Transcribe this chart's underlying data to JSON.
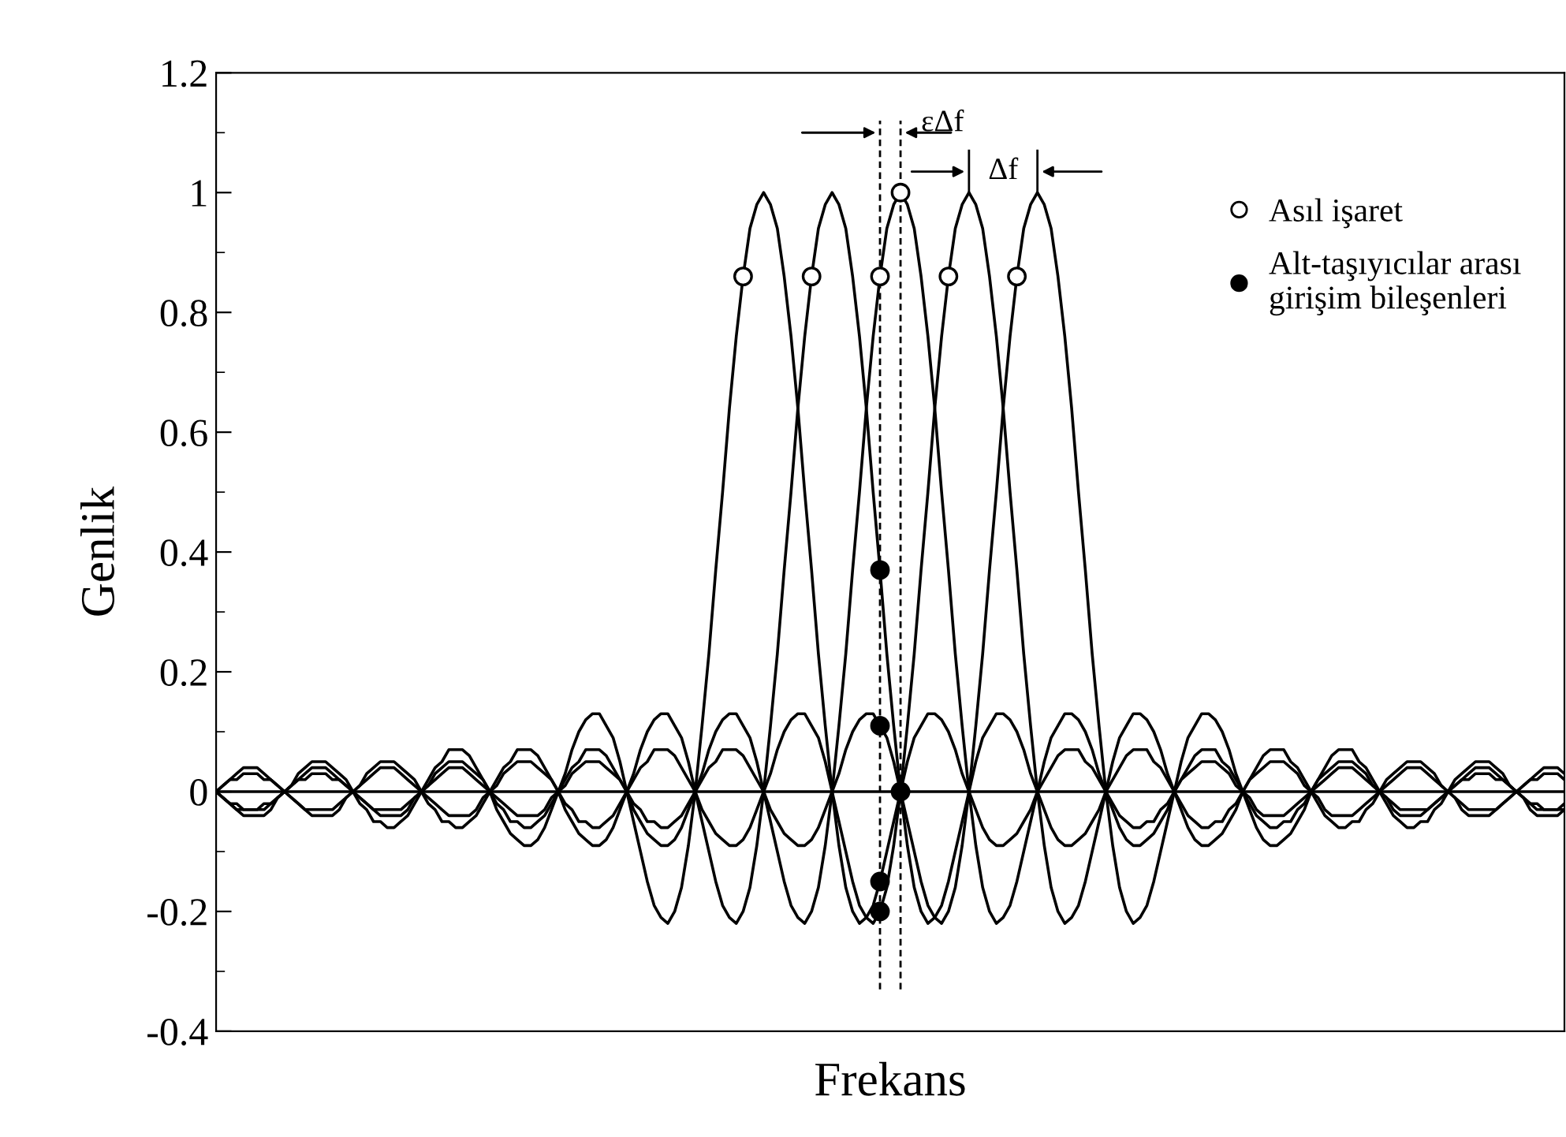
{
  "chart_data": {
    "type": "line",
    "xlabel": "Frekans",
    "ylabel": "Genlik",
    "categories": [
      null,
      null,
      null,
      null,
      null,
      null,
      null,
      null,
      null,
      null,
      null,
      null,
      null,
      null,
      null,
      null,
      null,
      null,
      null,
      null,
      null,
      null,
      null,
      null,
      null,
      null,
      null,
      null,
      null,
      null,
      null,
      null,
      null,
      null,
      null,
      null,
      null,
      null,
      null,
      null,
      null,
      null,
      null,
      null,
      null,
      null,
      null,
      null,
      null,
      null,
      null,
      null,
      null,
      null,
      null,
      null,
      null,
      null,
      null,
      null,
      null,
      null,
      null,
      null,
      null,
      null,
      null,
      null,
      null,
      null,
      null,
      null,
      null,
      null,
      null,
      null,
      null,
      null,
      null,
      null,
      null,
      null,
      null,
      null,
      null,
      null,
      null,
      null,
      null,
      null,
      null,
      null,
      null,
      null,
      null,
      null,
      null,
      null,
      null,
      null,
      null,
      null,
      null,
      null,
      null,
      null,
      null,
      null,
      null,
      null,
      null,
      null,
      null,
      null,
      null,
      null,
      null,
      null,
      null,
      null,
      null,
      null,
      null,
      null,
      null,
      null,
      null,
      null,
      null,
      null,
      null,
      null,
      null,
      null,
      null,
      null,
      null,
      null,
      null,
      null,
      null,
      null,
      null,
      null,
      null,
      null,
      null,
      null,
      null,
      null,
      null,
      null,
      null,
      null,
      null,
      null,
      null,
      null,
      null,
      null,
      null,
      null,
      null,
      null,
      null,
      null,
      null,
      null,
      null,
      null,
      null,
      null,
      null,
      null,
      null,
      null,
      null,
      null,
      null,
      null,
      null,
      null,
      null,
      null,
      null,
      null,
      null,
      null,
      null,
      null,
      null,
      null,
      null,
      null,
      null,
      null,
      null,
      null
    ],
    "ylim": [
      -0.4,
      1.2
    ],
    "yticks": [
      -0.4,
      -0.2,
      0,
      0.2,
      0.4,
      0.6,
      0.8,
      1,
      1.2
    ],
    "grid": false,
    "legend": "top right",
    "line_style": "solid",
    "ref_lines": [
      {
        "axis": "y",
        "value": 0,
        "color": "#000000",
        "line_style": "solid"
      }
    ],
    "annotations": [
      "εΔf",
      "Δf"
    ],
    "series": [
      {
        "color": "#000000",
        "marker": "none",
        "values": [
          0,
          -0.01,
          -0.02,
          -0.03,
          -0.04,
          -0.04,
          -0.04,
          -0.04,
          -0.03,
          -0.01,
          0,
          0.01,
          0.03,
          0.04,
          0.05,
          0.05,
          0.05,
          0.04,
          0.03,
          0.02,
          0,
          -0.02,
          -0.03,
          -0.05,
          -0.05,
          -0.06,
          -0.06,
          -0.05,
          -0.04,
          -0.02,
          0,
          0.02,
          0.04,
          0.05,
          0.07,
          0.07,
          0.07,
          0.06,
          0.04,
          0.02,
          0,
          -0.03,
          -0.05,
          -0.07,
          -0.08,
          -0.09,
          -0.09,
          -0.08,
          -0.06,
          -0.03,
          0,
          0.03,
          0.07,
          0.1,
          0.12,
          0.13,
          0.13,
          0.11,
          0.09,
          0.05,
          0,
          -0.05,
          -0.1,
          -0.15,
          -0.19,
          -0.21,
          -0.22,
          -0.2,
          -0.16,
          -0.09,
          0,
          0.11,
          0.23,
          0.37,
          0.5,
          0.64,
          0.76,
          0.86,
          0.94,
          0.98,
          1,
          0.98,
          0.94,
          0.86,
          0.76,
          0.64,
          0.5,
          0.37,
          0.23,
          0.11,
          0,
          -0.09,
          -0.16,
          -0.2,
          -0.22,
          -0.21,
          -0.19,
          -0.15,
          -0.1,
          -0.05,
          0,
          0.05,
          0.09,
          0.11,
          0.13,
          0.13,
          0.12,
          0.1,
          0.07,
          0.03,
          0,
          -0.03,
          -0.06,
          -0.08,
          -0.09,
          -0.09,
          -0.08,
          -0.07,
          -0.05,
          -0.03,
          0,
          0.02,
          0.04,
          0.06,
          0.07,
          0.07,
          0.07,
          0.05,
          0.04,
          0.02,
          0,
          -0.02,
          -0.04,
          -0.05,
          -0.06,
          -0.06,
          -0.05,
          -0.05,
          -0.03,
          -0.02,
          0,
          0.02,
          0.03,
          0.04,
          0.05,
          0.05,
          0.05,
          0.04,
          0.03,
          0.01,
          0,
          -0.01,
          -0.03,
          -0.04,
          -0.04,
          -0.04,
          -0.04,
          -0.03,
          -0.02,
          -0.01,
          0,
          0.01,
          0.02,
          0.03,
          0.04,
          0.04,
          0.04,
          0.03,
          0.02,
          0.01,
          0,
          -0.01,
          -0.02,
          -0.03,
          -0.03,
          -0.03,
          -0.03,
          -0.03,
          -0.02,
          -0.01,
          0,
          0.01,
          0.02,
          0.02,
          0.03,
          0.03,
          0.03,
          0.02,
          0.02,
          0.01,
          0,
          -0.01,
          -0.02,
          -0.02,
          -0.03,
          -0.03,
          -0.03,
          -0.02
        ]
      },
      {
        "color": "#000000",
        "marker": "none",
        "values": [
          0,
          0.01,
          0.02,
          0.03,
          0.04,
          0.04,
          0.04,
          0.03,
          0.02,
          0.01,
          0,
          -0.01,
          -0.02,
          -0.03,
          -0.04,
          -0.04,
          -0.04,
          -0.04,
          -0.03,
          -0.01,
          0,
          0.01,
          0.03,
          0.04,
          0.05,
          0.05,
          0.05,
          0.04,
          0.03,
          0.02,
          0,
          -0.02,
          -0.03,
          -0.05,
          -0.05,
          -0.06,
          -0.06,
          -0.05,
          -0.04,
          -0.02,
          0,
          0.02,
          0.04,
          0.05,
          0.07,
          0.07,
          0.07,
          0.06,
          0.04,
          0.02,
          0,
          -0.03,
          -0.05,
          -0.07,
          -0.08,
          -0.09,
          -0.09,
          -0.08,
          -0.06,
          -0.03,
          0,
          0.03,
          0.07,
          0.1,
          0.12,
          0.13,
          0.13,
          0.11,
          0.09,
          0.05,
          0,
          -0.05,
          -0.1,
          -0.15,
          -0.19,
          -0.21,
          -0.22,
          -0.2,
          -0.16,
          -0.09,
          0,
          0.11,
          0.23,
          0.37,
          0.5,
          0.64,
          0.76,
          0.86,
          0.94,
          0.98,
          1,
          0.98,
          0.94,
          0.86,
          0.76,
          0.64,
          0.5,
          0.37,
          0.23,
          0.11,
          0,
          -0.09,
          -0.16,
          -0.2,
          -0.22,
          -0.21,
          -0.19,
          -0.15,
          -0.1,
          -0.05,
          0,
          0.05,
          0.09,
          0.11,
          0.13,
          0.13,
          0.12,
          0.1,
          0.07,
          0.03,
          0,
          -0.03,
          -0.06,
          -0.08,
          -0.09,
          -0.09,
          -0.08,
          -0.07,
          -0.05,
          -0.03,
          0,
          0.02,
          0.04,
          0.06,
          0.07,
          0.07,
          0.07,
          0.05,
          0.04,
          0.02,
          0,
          -0.02,
          -0.04,
          -0.05,
          -0.06,
          -0.06,
          -0.05,
          -0.05,
          -0.03,
          -0.02,
          0,
          0.02,
          0.03,
          0.04,
          0.05,
          0.05,
          0.05,
          0.04,
          0.03,
          0.01,
          0,
          -0.01,
          -0.03,
          -0.04,
          -0.04,
          -0.04,
          -0.04,
          -0.03,
          -0.02,
          -0.01,
          0,
          0.01,
          0.02,
          0.03,
          0.04,
          0.04,
          0.04,
          0.03,
          0.02,
          0.01,
          0,
          -0.01,
          -0.02,
          -0.03,
          -0.03,
          -0.03,
          -0.03,
          -0.03,
          -0.02,
          -0.01,
          0,
          0.01,
          0.02,
          0.02,
          0.03,
          0.03,
          0.03,
          0.02
        ]
      },
      {
        "color": "#000000",
        "marker": "none",
        "values": [
          0,
          -0.01,
          -0.02,
          -0.03,
          -0.03,
          -0.03,
          -0.03,
          -0.03,
          -0.02,
          -0.01,
          0,
          0.01,
          0.02,
          0.03,
          0.04,
          0.04,
          0.04,
          0.03,
          0.02,
          0.01,
          0,
          -0.01,
          -0.02,
          -0.03,
          -0.04,
          -0.04,
          -0.04,
          -0.04,
          -0.03,
          -0.01,
          0,
          0.01,
          0.03,
          0.04,
          0.05,
          0.05,
          0.05,
          0.04,
          0.03,
          0.02,
          0,
          -0.02,
          -0.03,
          -0.05,
          -0.05,
          -0.06,
          -0.06,
          -0.05,
          -0.04,
          -0.02,
          0,
          0.02,
          0.04,
          0.05,
          0.07,
          0.07,
          0.07,
          0.06,
          0.04,
          0.02,
          0,
          -0.03,
          -0.05,
          -0.07,
          -0.08,
          -0.09,
          -0.09,
          -0.08,
          -0.06,
          -0.03,
          0,
          0.03,
          0.07,
          0.1,
          0.12,
          0.13,
          0.13,
          0.11,
          0.09,
          0.05,
          0,
          -0.05,
          -0.1,
          -0.15,
          -0.19,
          -0.21,
          -0.22,
          -0.2,
          -0.16,
          -0.09,
          0,
          0.11,
          0.23,
          0.37,
          0.5,
          0.64,
          0.76,
          0.86,
          0.94,
          0.98,
          1,
          0.98,
          0.94,
          0.86,
          0.76,
          0.64,
          0.5,
          0.37,
          0.23,
          0.11,
          0,
          -0.09,
          -0.16,
          -0.2,
          -0.22,
          -0.21,
          -0.19,
          -0.15,
          -0.1,
          -0.05,
          0,
          0.05,
          0.09,
          0.11,
          0.13,
          0.13,
          0.12,
          0.1,
          0.07,
          0.03,
          0,
          -0.03,
          -0.06,
          -0.08,
          -0.09,
          -0.09,
          -0.08,
          -0.07,
          -0.05,
          -0.03,
          0,
          0.02,
          0.04,
          0.06,
          0.07,
          0.07,
          0.07,
          0.05,
          0.04,
          0.02,
          0,
          -0.02,
          -0.04,
          -0.05,
          -0.06,
          -0.06,
          -0.05,
          -0.05,
          -0.03,
          -0.02,
          0,
          0.02,
          0.03,
          0.04,
          0.05,
          0.05,
          0.05,
          0.04,
          0.03,
          0.01,
          0,
          -0.01,
          -0.03,
          -0.04,
          -0.04,
          -0.04,
          -0.04,
          -0.03,
          -0.02,
          -0.01,
          0,
          0.01,
          0.02,
          0.03,
          0.04,
          0.04,
          0.04,
          0.03,
          0.02,
          0.01,
          0,
          -0.01,
          -0.02,
          -0.03,
          -0.03,
          -0.03,
          -0.03,
          -0.03
        ]
      },
      {
        "color": "#000000",
        "marker": "none",
        "values": [
          0,
          0.01,
          0.02,
          0.02,
          0.03,
          0.03,
          0.03,
          0.02,
          0.02,
          0.01,
          0,
          -0.01,
          -0.02,
          -0.03,
          -0.03,
          -0.03,
          -0.03,
          -0.03,
          -0.02,
          -0.01,
          0,
          0.01,
          0.02,
          0.03,
          0.04,
          0.04,
          0.04,
          0.03,
          0.02,
          0.01,
          0,
          -0.01,
          -0.02,
          -0.03,
          -0.04,
          -0.04,
          -0.04,
          -0.04,
          -0.03,
          -0.01,
          0,
          0.01,
          0.03,
          0.04,
          0.05,
          0.05,
          0.05,
          0.04,
          0.03,
          0.02,
          0,
          -0.02,
          -0.03,
          -0.05,
          -0.05,
          -0.06,
          -0.06,
          -0.05,
          -0.04,
          -0.02,
          0,
          0.02,
          0.04,
          0.05,
          0.07,
          0.07,
          0.07,
          0.06,
          0.04,
          0.02,
          0,
          -0.03,
          -0.05,
          -0.07,
          -0.08,
          -0.09,
          -0.09,
          -0.08,
          -0.06,
          -0.03,
          0,
          0.03,
          0.07,
          0.1,
          0.12,
          0.13,
          0.13,
          0.11,
          0.09,
          0.05,
          0,
          -0.05,
          -0.1,
          -0.15,
          -0.19,
          -0.21,
          -0.22,
          -0.2,
          -0.16,
          -0.09,
          0,
          0.11,
          0.23,
          0.37,
          0.5,
          0.64,
          0.76,
          0.86,
          0.94,
          0.98,
          1,
          0.98,
          0.94,
          0.86,
          0.76,
          0.64,
          0.5,
          0.37,
          0.23,
          0.11,
          0,
          -0.09,
          -0.16,
          -0.2,
          -0.22,
          -0.21,
          -0.19,
          -0.15,
          -0.1,
          -0.05,
          0,
          0.05,
          0.09,
          0.11,
          0.13,
          0.13,
          0.12,
          0.1,
          0.07,
          0.03,
          0,
          -0.03,
          -0.06,
          -0.08,
          -0.09,
          -0.09,
          -0.08,
          -0.07,
          -0.05,
          -0.03,
          0,
          0.02,
          0.04,
          0.06,
          0.07,
          0.07,
          0.07,
          0.05,
          0.04,
          0.02,
          0,
          -0.02,
          -0.04,
          -0.05,
          -0.06,
          -0.06,
          -0.05,
          -0.05,
          -0.03,
          -0.02,
          0,
          0.02,
          0.03,
          0.04,
          0.05,
          0.05,
          0.05,
          0.04,
          0.03,
          0.01,
          0,
          -0.01,
          -0.03,
          -0.04,
          -0.04,
          -0.04,
          -0.04,
          -0.03,
          -0.02,
          -0.01,
          0,
          0.01,
          0.02,
          0.03,
          0.04,
          0.04,
          0.04,
          0.03
        ]
      },
      {
        "color": "#000000",
        "marker": "none",
        "values": [
          0,
          -0.01,
          -0.02,
          -0.02,
          -0.03,
          -0.03,
          -0.03,
          -0.02,
          -0.02,
          -0.01,
          0,
          0.01,
          0.02,
          0.02,
          0.03,
          0.03,
          0.03,
          0.02,
          0.02,
          0.01,
          0,
          -0.01,
          -0.02,
          -0.03,
          -0.03,
          -0.03,
          -0.03,
          -0.03,
          -0.02,
          -0.01,
          0,
          0.01,
          0.02,
          0.03,
          0.04,
          0.04,
          0.04,
          0.03,
          0.02,
          0.01,
          0,
          -0.01,
          -0.02,
          -0.03,
          -0.04,
          -0.04,
          -0.04,
          -0.04,
          -0.03,
          -0.01,
          0,
          0.01,
          0.03,
          0.04,
          0.05,
          0.05,
          0.05,
          0.04,
          0.03,
          0.02,
          0,
          -0.02,
          -0.03,
          -0.05,
          -0.05,
          -0.06,
          -0.06,
          -0.05,
          -0.04,
          -0.02,
          0,
          0.02,
          0.04,
          0.05,
          0.07,
          0.07,
          0.07,
          0.06,
          0.04,
          0.02,
          0,
          -0.03,
          -0.05,
          -0.07,
          -0.08,
          -0.09,
          -0.09,
          -0.08,
          -0.06,
          -0.03,
          0,
          0.03,
          0.07,
          0.1,
          0.12,
          0.13,
          0.13,
          0.11,
          0.09,
          0.05,
          0,
          -0.05,
          -0.1,
          -0.15,
          -0.19,
          -0.21,
          -0.22,
          -0.2,
          -0.16,
          -0.09,
          0,
          0.11,
          0.23,
          0.37,
          0.5,
          0.64,
          0.76,
          0.86,
          0.94,
          0.98,
          1,
          0.98,
          0.94,
          0.86,
          0.76,
          0.64,
          0.5,
          0.37,
          0.23,
          0.11,
          0,
          -0.09,
          -0.16,
          -0.2,
          -0.22,
          -0.21,
          -0.19,
          -0.15,
          -0.1,
          -0.05,
          0,
          0.05,
          0.09,
          0.11,
          0.13,
          0.13,
          0.12,
          0.1,
          0.07,
          0.03,
          0,
          -0.03,
          -0.06,
          -0.08,
          -0.09,
          -0.09,
          -0.08,
          -0.07,
          -0.05,
          -0.03,
          0,
          0.02,
          0.04,
          0.06,
          0.07,
          0.07,
          0.07,
          0.05,
          0.04,
          0.02,
          0,
          -0.02,
          -0.04,
          -0.05,
          -0.06,
          -0.06,
          -0.05,
          -0.05,
          -0.03,
          -0.02,
          0,
          0.02,
          0.03,
          0.04,
          0.05,
          0.05,
          0.05,
          0.04,
          0.03,
          0.01,
          0,
          -0.01,
          -0.03,
          -0.04,
          -0.04,
          -0.04,
          -0.04,
          -0.03
        ]
      },
      {
        "type": "scatter",
        "name": "Asıl işaret",
        "color": "#ffffff",
        "marker": "circle",
        "values": [
          null,
          null,
          null,
          null,
          null,
          null,
          null,
          null,
          null,
          null,
          null,
          null,
          null,
          null,
          null,
          null,
          null,
          null,
          null,
          null,
          null,
          null,
          null,
          null,
          null,
          null,
          null,
          null,
          null,
          null,
          null,
          null,
          null,
          null,
          null,
          null,
          null,
          null,
          null,
          null,
          null,
          null,
          null,
          null,
          null,
          null,
          null,
          null,
          null,
          null,
          null,
          null,
          null,
          null,
          null,
          null,
          null,
          null,
          null,
          null,
          null,
          null,
          null,
          null,
          null,
          null,
          null,
          null,
          null,
          null,
          null,
          null,
          null,
          null,
          null,
          null,
          null,
          0.86,
          null,
          null,
          null,
          null,
          null,
          null,
          null,
          null,
          null,
          0.86,
          null,
          null,
          null,
          null,
          null,
          null,
          null,
          null,
          null,
          0.86,
          null,
          null,
          1,
          null,
          null,
          null,
          null,
          null,
          null,
          0.86,
          null,
          null,
          null,
          null,
          null,
          null,
          null,
          null,
          null,
          0.86,
          null,
          null,
          null,
          null,
          null,
          null,
          null,
          null,
          null,
          null,
          null,
          null,
          null,
          null,
          null,
          null,
          null,
          null,
          null,
          null,
          null,
          null,
          null,
          null,
          null,
          null,
          null,
          null,
          null,
          null,
          null,
          null,
          null,
          null,
          null,
          null,
          null,
          null,
          null,
          null,
          null,
          null,
          null,
          null,
          null,
          null,
          null,
          null,
          null,
          null,
          null,
          null,
          null,
          null,
          null,
          null,
          null,
          null,
          null,
          null,
          null,
          null,
          null,
          null,
          null,
          null,
          null,
          null,
          null,
          null,
          null,
          null,
          null,
          null,
          null,
          null,
          null,
          null,
          null,
          null
        ]
      },
      {
        "type": "scatter",
        "name": "Alt-taşıyıcılar arası\ngirişim bileşenleri",
        "color": "#000000",
        "marker": "circle",
        "values": [
          null,
          null,
          null,
          null,
          null,
          null,
          null,
          null,
          null,
          null,
          null,
          null,
          null,
          null,
          null,
          null,
          null,
          null,
          null,
          null,
          null,
          null,
          null,
          null,
          null,
          null,
          null,
          null,
          null,
          null,
          null,
          null,
          null,
          null,
          null,
          null,
          null,
          null,
          null,
          null,
          null,
          null,
          null,
          null,
          null,
          null,
          null,
          null,
          null,
          null,
          null,
          null,
          null,
          null,
          null,
          null,
          null,
          null,
          null,
          null,
          null,
          null,
          null,
          null,
          null,
          null,
          null,
          null,
          null,
          null,
          null,
          null,
          null,
          null,
          null,
          null,
          null,
          null,
          null,
          null,
          null,
          null,
          null,
          null,
          null,
          null,
          null,
          null,
          null,
          null,
          null,
          null,
          null,
          null,
          null,
          null,
          null,
          0.37,
          null,
          null,
          0,
          null,
          null,
          null,
          null,
          null,
          null,
          null,
          null,
          null,
          null,
          null,
          null,
          null,
          null,
          null,
          null,
          null,
          null,
          null,
          null,
          null,
          null,
          null,
          null,
          null,
          null,
          null,
          null,
          null,
          null,
          null,
          null,
          null,
          null,
          null,
          null,
          null,
          null,
          null,
          null,
          null,
          null,
          null,
          null,
          null,
          null,
          null,
          null,
          null,
          null,
          null,
          null,
          null,
          null,
          null,
          null,
          null,
          null,
          null,
          null,
          null,
          null,
          null,
          null,
          null,
          null,
          null,
          null,
          null,
          null,
          null,
          null,
          null,
          null,
          null,
          null,
          null,
          null,
          null,
          null,
          null,
          null,
          null,
          null,
          null,
          null,
          null,
          null,
          null,
          null,
          null,
          null,
          null,
          null,
          null,
          null,
          null
        ]
      },
      {
        "type": "scatter",
        "color": "#000000",
        "marker": "circle",
        "values": [
          null,
          null,
          null,
          null,
          null,
          null,
          null,
          null,
          null,
          null,
          null,
          null,
          null,
          null,
          null,
          null,
          null,
          null,
          null,
          null,
          null,
          null,
          null,
          null,
          null,
          null,
          null,
          null,
          null,
          null,
          null,
          null,
          null,
          null,
          null,
          null,
          null,
          null,
          null,
          null,
          null,
          null,
          null,
          null,
          null,
          null,
          null,
          null,
          null,
          null,
          null,
          null,
          null,
          null,
          null,
          null,
          null,
          null,
          null,
          null,
          null,
          null,
          null,
          null,
          null,
          null,
          null,
          null,
          null,
          null,
          null,
          null,
          null,
          null,
          null,
          null,
          null,
          null,
          null,
          null,
          null,
          null,
          null,
          null,
          null,
          null,
          null,
          null,
          null,
          null,
          null,
          null,
          null,
          null,
          null,
          null,
          null,
          0.11,
          null,
          null,
          null,
          null,
          null,
          null,
          null,
          null,
          null,
          null,
          null,
          null,
          null,
          null,
          null,
          null,
          null,
          null,
          null,
          null,
          null,
          null,
          null,
          null,
          null,
          null,
          null,
          null,
          null,
          null,
          null,
          null,
          null,
          null,
          null,
          null,
          null,
          null,
          null,
          null,
          null,
          null,
          null,
          null,
          null,
          null,
          null,
          null,
          null,
          null,
          null,
          null,
          null,
          null,
          null,
          null,
          null,
          null,
          null,
          null,
          null,
          null,
          null,
          null,
          null,
          null,
          null,
          null,
          null,
          null,
          null,
          null,
          null,
          null,
          null,
          null,
          null,
          null,
          null,
          null,
          null,
          null,
          null,
          null,
          null,
          null,
          null,
          null,
          null,
          null,
          null,
          null,
          null,
          null,
          null,
          null,
          null,
          null,
          null,
          null
        ]
      },
      {
        "type": "scatter",
        "color": "#000000",
        "marker": "circle",
        "values": [
          null,
          null,
          null,
          null,
          null,
          null,
          null,
          null,
          null,
          null,
          null,
          null,
          null,
          null,
          null,
          null,
          null,
          null,
          null,
          null,
          null,
          null,
          null,
          null,
          null,
          null,
          null,
          null,
          null,
          null,
          null,
          null,
          null,
          null,
          null,
          null,
          null,
          null,
          null,
          null,
          null,
          null,
          null,
          null,
          null,
          null,
          null,
          null,
          null,
          null,
          null,
          null,
          null,
          null,
          null,
          null,
          null,
          null,
          null,
          null,
          null,
          null,
          null,
          null,
          null,
          null,
          null,
          null,
          null,
          null,
          null,
          null,
          null,
          null,
          null,
          null,
          null,
          null,
          null,
          null,
          null,
          null,
          null,
          null,
          null,
          null,
          null,
          null,
          null,
          null,
          null,
          null,
          null,
          null,
          null,
          null,
          null,
          -0.15,
          null,
          null,
          null,
          null,
          null,
          null,
          null,
          null,
          null,
          null,
          null,
          null,
          null,
          null,
          null,
          null,
          null,
          null,
          null,
          null,
          null,
          null,
          null,
          null,
          null,
          null,
          null,
          null,
          null,
          null,
          null,
          null,
          null,
          null,
          null,
          null,
          null,
          null,
          null,
          null,
          null,
          null,
          null,
          null,
          null,
          null,
          null,
          null,
          null,
          null,
          null,
          null,
          null,
          null,
          null,
          null,
          null,
          null,
          null,
          null,
          null,
          null,
          null,
          null,
          null,
          null,
          null,
          null,
          null,
          null,
          null,
          null,
          null,
          null,
          null,
          null,
          null,
          null,
          null,
          null,
          null,
          null,
          null,
          null,
          null,
          null,
          null,
          null,
          null,
          null,
          null,
          null,
          null,
          null,
          null,
          null,
          null,
          null,
          null,
          null
        ]
      },
      {
        "type": "scatter",
        "color": "#000000",
        "marker": "circle",
        "values": [
          null,
          null,
          null,
          null,
          null,
          null,
          null,
          null,
          null,
          null,
          null,
          null,
          null,
          null,
          null,
          null,
          null,
          null,
          null,
          null,
          null,
          null,
          null,
          null,
          null,
          null,
          null,
          null,
          null,
          null,
          null,
          null,
          null,
          null,
          null,
          null,
          null,
          null,
          null,
          null,
          null,
          null,
          null,
          null,
          null,
          null,
          null,
          null,
          null,
          null,
          null,
          null,
          null,
          null,
          null,
          null,
          null,
          null,
          null,
          null,
          null,
          null,
          null,
          null,
          null,
          null,
          null,
          null,
          null,
          null,
          null,
          null,
          null,
          null,
          null,
          null,
          null,
          null,
          null,
          null,
          null,
          null,
          null,
          null,
          null,
          null,
          null,
          null,
          null,
          null,
          null,
          null,
          null,
          null,
          null,
          null,
          null,
          -0.2,
          null,
          null,
          null,
          null,
          null,
          null,
          null,
          null,
          null,
          null,
          null,
          null,
          null,
          null,
          null,
          null,
          null,
          null,
          null,
          null,
          null,
          null,
          null,
          null,
          null,
          null,
          null,
          null,
          null,
          null,
          null,
          null,
          null,
          null,
          null,
          null,
          null,
          null,
          null,
          null,
          null,
          null,
          null,
          null,
          null,
          null,
          null,
          null,
          null,
          null,
          null,
          null,
          null,
          null,
          null,
          null,
          null,
          null,
          null,
          null,
          null,
          null,
          null,
          null,
          null,
          null,
          null,
          null,
          null,
          null,
          null,
          null,
          null,
          null,
          null,
          null,
          null,
          null,
          null,
          null,
          null,
          null,
          null,
          null,
          null,
          null,
          null,
          null,
          null,
          null,
          null,
          null,
          null,
          null,
          null,
          null,
          null,
          null,
          null,
          null
        ]
      }
    ]
  }
}
